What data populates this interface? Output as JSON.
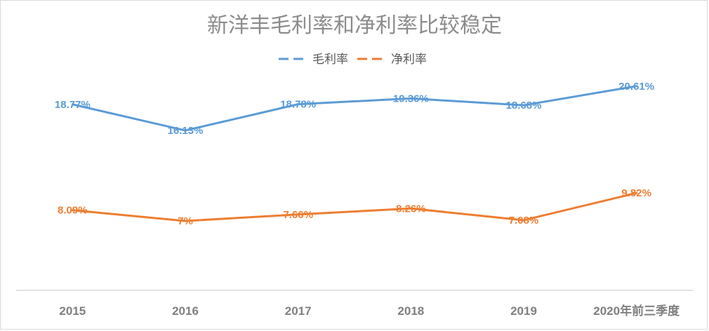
{
  "chart_data": {
    "type": "line",
    "title": "新洋丰毛利率和净利率比较稳定",
    "xlabel": "",
    "ylabel": "",
    "categories": [
      "2015",
      "2016",
      "2017",
      "2018",
      "2019",
      "2020年前三季度"
    ],
    "ylim": [
      0,
      25
    ],
    "grid": false,
    "legend_position": "top-center",
    "series": [
      {
        "name": "毛利率",
        "color": "#5b9bd5",
        "values": [
          18.77,
          16.13,
          18.78,
          19.36,
          18.68,
          20.61
        ],
        "labels": [
          "18.77%",
          "16.13%",
          "18.78%",
          "19.36%",
          "18.68%",
          "20.61%"
        ]
      },
      {
        "name": "净利率",
        "color": "#ed7d31",
        "values": [
          8.09,
          7.0,
          7.66,
          8.26,
          7.08,
          9.82
        ],
        "labels": [
          "8.09%",
          "7%",
          "7.66%",
          "8.26%",
          "7.08%",
          "9.82%"
        ]
      }
    ]
  }
}
